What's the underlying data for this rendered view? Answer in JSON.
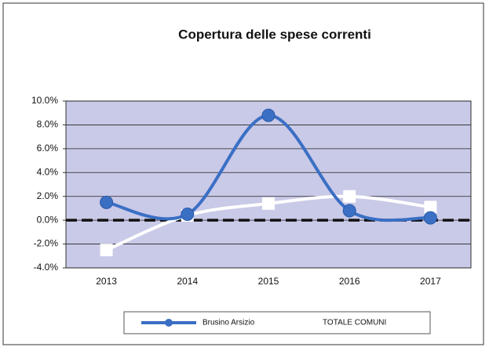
{
  "chart_data": {
    "type": "line",
    "title": "Copertura delle spese correnti",
    "categories": [
      "2013",
      "2014",
      "2015",
      "2016",
      "2017"
    ],
    "series": [
      {
        "name": "Brusino Arsizio",
        "color": "#3a6fc4",
        "values": [
          1.5,
          0.5,
          8.8,
          0.8,
          0.2
        ]
      },
      {
        "name": "TOTALE COMUNI",
        "color": "#ffffff",
        "values": [
          -2.5,
          0.4,
          1.4,
          2.0,
          1.1
        ]
      }
    ],
    "ylim": [
      -4,
      10
    ],
    "yticks": [
      {
        "value": -4,
        "label": "-4.0%"
      },
      {
        "value": -2,
        "label": "-2.0%"
      },
      {
        "value": 0,
        "label": "0.0%"
      },
      {
        "value": 2,
        "label": "2.0%"
      },
      {
        "value": 4,
        "label": "4.0%"
      },
      {
        "value": 6,
        "label": "6.0%"
      },
      {
        "value": 8,
        "label": "8.0%"
      },
      {
        "value": 10,
        "label": "10.0%"
      }
    ],
    "grid": true,
    "legend": "bottom"
  }
}
